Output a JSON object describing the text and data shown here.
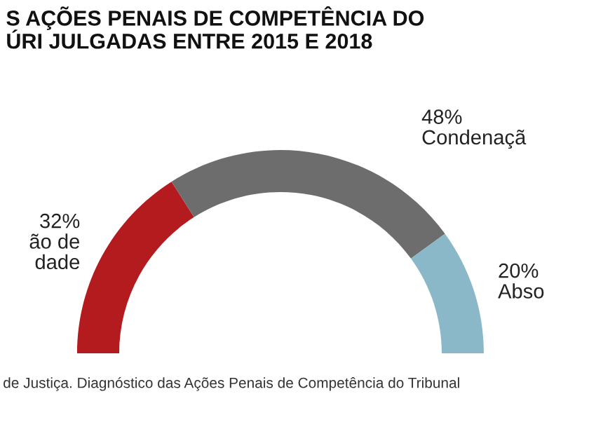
{
  "chart_data": {
    "type": "donut",
    "title": "S AÇÕES PENAIS DE COMPETÊNCIA DO\nÚRI JULGADAS ENTRE 2015 E 2018",
    "categories": [
      "ão de\ndade",
      "Condenaçã",
      "Abso"
    ],
    "values": [
      32,
      48,
      20
    ],
    "value_labels": [
      "32%",
      "48%",
      "20%"
    ],
    "colors": [
      "#b31b1e",
      "#6d6d6d",
      "#8ab8c8"
    ],
    "annotations": [
      "de Justiça. Diagnóstico das Ações Penais de Competência do Tribunal"
    ]
  }
}
